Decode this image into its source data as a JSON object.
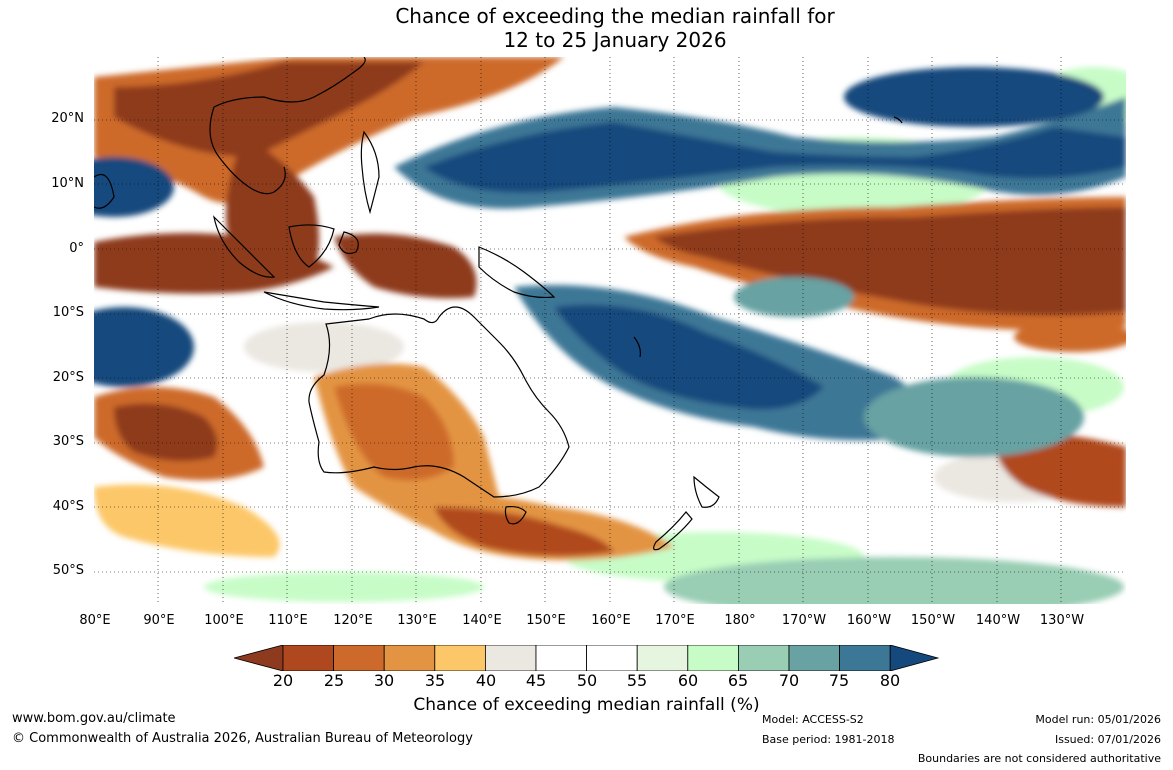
{
  "title_line1": "Chance of exceeding the median rainfall for",
  "title_line2": "12 to 25 January 2026",
  "latitude_labels": [
    "20°N",
    "10°N",
    "0°",
    "10°S",
    "20°S",
    "30°S",
    "40°S",
    "50°S"
  ],
  "longitude_labels": [
    "80°E",
    "90°E",
    "100°E",
    "110°E",
    "120°E",
    "130°E",
    "140°E",
    "150°E",
    "160°E",
    "170°E",
    "180°",
    "170°W",
    "160°W",
    "150°W",
    "140°W",
    "130°W"
  ],
  "colorbar": {
    "ticks": [
      "20",
      "25",
      "30",
      "35",
      "40",
      "45",
      "50",
      "55",
      "60",
      "65",
      "70",
      "75",
      "80"
    ],
    "colors": [
      "#8e3a1f",
      "#b0481f",
      "#cd6a2b",
      "#e39443",
      "#fcc768",
      "#ebe7e1",
      "#ffffff",
      "#ffffff",
      "#e5f5e0",
      "#c7fcc7",
      "#99cdb4",
      "#68a2a3",
      "#3d7796",
      "#15497d"
    ],
    "title": "Chance of exceeding median rainfall (%)"
  },
  "footer": {
    "website": "www.bom.gov.au/climate",
    "copyright": "© Commonwealth of Australia 2026, Australian Bureau of Meteorology",
    "model": "Model: ACCESS-S2",
    "base_period": "Base period: 1981-2018",
    "model_run": "Model run: 05/01/2026",
    "issued": "Issued: 07/01/2026",
    "disclaimer": "Boundaries are not considered authoritative"
  }
}
